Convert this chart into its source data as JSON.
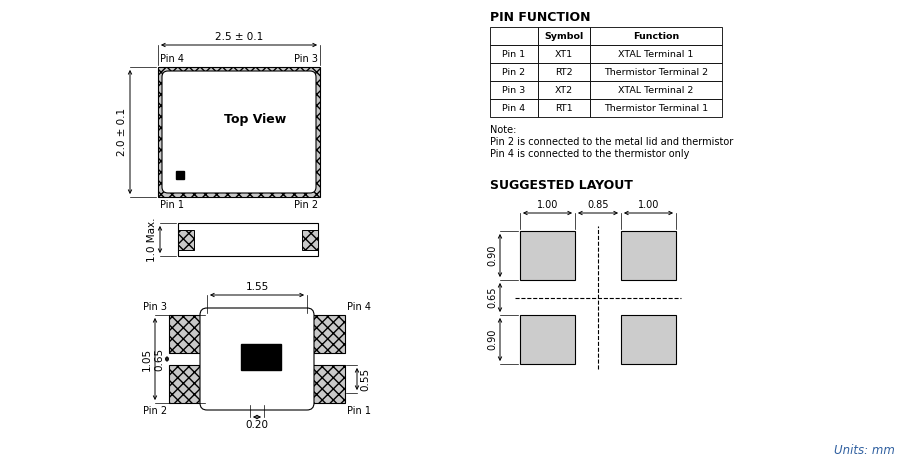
{
  "bg_color": "#ffffff",
  "pin_function_title": "PIN FUNCTION",
  "pin_table_headers": [
    "",
    "Symbol",
    "Function"
  ],
  "pin_table_rows": [
    [
      "Pin 1",
      "XT1",
      "XTAL Terminal 1"
    ],
    [
      "Pin 2",
      "RT2",
      "Thermistor Terminal 2"
    ],
    [
      "Pin 3",
      "XT2",
      "XTAL Terminal 2"
    ],
    [
      "Pin 4",
      "RT1",
      "Thermistor Terminal 1"
    ]
  ],
  "note_lines": [
    "Note:",
    "Pin 2 is connected to the metal lid and thermistor",
    "Pin 4 is connected to the thermistor only"
  ],
  "suggested_layout_title": "SUGGESTED LAYOUT",
  "units_text": "Units: mm",
  "dim_25": "2.5 ± 0.1",
  "dim_20": "2.0 ± 0.1",
  "dim_10": "1.0 Max.",
  "dim_155": "1.55",
  "dim_105": "1.05",
  "dim_065a": "0.65",
  "dim_055": "0.55",
  "dim_020": "0.20",
  "layout_dim_100a": "1.00",
  "layout_dim_085": "0.85",
  "layout_dim_100b": "1.00",
  "layout_dim_090a": "0.90",
  "layout_dim_065": "0.65",
  "layout_dim_090b": "0.90",
  "pad_fill": "#cccccc",
  "line_color": "#000000",
  "blue_color": "#3060a0"
}
